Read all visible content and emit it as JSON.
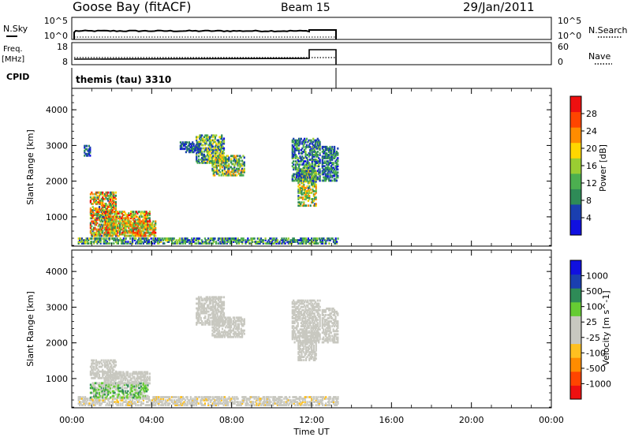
{
  "header": {
    "station": "Goose Bay (fitACF)",
    "beam": "Beam 15",
    "date": "29/Jan/2011"
  },
  "nsky_panel": {
    "left_label": "N.Sky",
    "left_ticks": [
      "10^5",
      "10^0"
    ],
    "right_ticks": [
      "10^5",
      "10^0"
    ],
    "right_label": "N.Search"
  },
  "freq_panel": {
    "left_label_line1": "Freq.",
    "left_label_line2": "[MHz]",
    "left_ticks": [
      "18",
      "8"
    ],
    "right_ticks": [
      "60",
      "0"
    ],
    "right_label": "Nave"
  },
  "cpid_panel": {
    "label": "CPID",
    "mode": "themis (tau) 3310"
  },
  "colors": {
    "power": [
      "#1010e0",
      "#1a3fb0",
      "#2e8b57",
      "#4caf50",
      "#9acd32",
      "#ffd700",
      "#ff8c00",
      "#ff4500",
      "#ee1010"
    ],
    "velocity": [
      "#ee1010",
      "#ff4500",
      "#ff8c00",
      "#ffc020",
      "#c8c8c0",
      "#c8c8c0",
      "#66cc33",
      "#2e8b57",
      "#1a3fb0",
      "#1010e0"
    ]
  },
  "chart_data": [
    {
      "type": "heatmap",
      "name": "power",
      "ylabel": "Slant Range [km]",
      "yticks": [
        "1000",
        "2000",
        "3000",
        "4000"
      ],
      "ylim": [
        180,
        4600
      ],
      "colorbar_label": "Power [dB]",
      "colorbar_ticks": [
        "4",
        "8",
        "12",
        "16",
        "20",
        "24",
        "28"
      ],
      "colorbar_range": [
        0,
        32
      ],
      "regions": [
        {
          "t": [
            0.3,
            1.4
          ],
          "r": [
            240,
            420
          ],
          "v": [
            3,
            20
          ]
        },
        {
          "t": [
            1.4,
            13.3
          ],
          "r": [
            240,
            380
          ],
          "v": [
            2,
            18
          ]
        },
        {
          "t": [
            0.9,
            2.2
          ],
          "r": [
            450,
            1700
          ],
          "v": [
            6,
            30
          ]
        },
        {
          "t": [
            1.6,
            3.9
          ],
          "r": [
            450,
            1150
          ],
          "v": [
            8,
            31
          ]
        },
        {
          "t": [
            2.5,
            4.2
          ],
          "r": [
            450,
            900
          ],
          "v": [
            10,
            30
          ]
        },
        {
          "t": [
            6.2,
            7.6
          ],
          "r": [
            2500,
            3300
          ],
          "v": [
            3,
            22
          ]
        },
        {
          "t": [
            7.0,
            8.6
          ],
          "r": [
            2150,
            2700
          ],
          "v": [
            5,
            24
          ]
        },
        {
          "t": [
            11.3,
            12.2
          ],
          "r": [
            1300,
            2300
          ],
          "v": [
            6,
            24
          ]
        },
        {
          "t": [
            11.0,
            12.4
          ],
          "r": [
            2000,
            3200
          ],
          "v": [
            2,
            16
          ]
        },
        {
          "t": [
            12.5,
            13.3
          ],
          "r": [
            2000,
            2950
          ],
          "v": [
            2,
            14
          ]
        },
        {
          "t": [
            5.4,
            6.4
          ],
          "r": [
            2800,
            3100
          ],
          "v": [
            2,
            10
          ]
        },
        {
          "t": [
            0.6,
            0.9
          ],
          "r": [
            2700,
            3000
          ],
          "v": [
            2,
            8
          ]
        }
      ]
    },
    {
      "type": "heatmap",
      "name": "velocity",
      "ylabel": "Slant Range [km]",
      "yticks": [
        "1000",
        "2000",
        "3000",
        "4000"
      ],
      "ylim": [
        180,
        4600
      ],
      "colorbar_label": "Velocity [m s^-1]",
      "colorbar_ticks": [
        "1000",
        "500",
        "100",
        "25",
        "-25",
        "-100",
        "-500",
        "-1000"
      ],
      "colorbar_range": [
        -1250,
        1250
      ],
      "regions": [
        {
          "t": [
            0.3,
            13.3
          ],
          "r": [
            240,
            500
          ],
          "v": [
            -300,
            100
          ]
        },
        {
          "t": [
            0.9,
            3.8
          ],
          "r": [
            450,
            900
          ],
          "v": [
            50,
            600
          ]
        },
        {
          "t": [
            0.9,
            2.2
          ],
          "r": [
            1000,
            1500
          ],
          "v": [
            -20,
            20
          ]
        },
        {
          "t": [
            1.6,
            3.9
          ],
          "r": [
            850,
            1200
          ],
          "v": [
            -20,
            20
          ]
        },
        {
          "t": [
            6.2,
            7.6
          ],
          "r": [
            2500,
            3300
          ],
          "v": [
            -20,
            20
          ]
        },
        {
          "t": [
            7.0,
            8.6
          ],
          "r": [
            2150,
            2700
          ],
          "v": [
            -20,
            20
          ]
        },
        {
          "t": [
            11.3,
            12.2
          ],
          "r": [
            1500,
            2300
          ],
          "v": [
            -20,
            20
          ]
        },
        {
          "t": [
            11.0,
            12.4
          ],
          "r": [
            2000,
            3200
          ],
          "v": [
            -20,
            20
          ]
        },
        {
          "t": [
            12.5,
            13.3
          ],
          "r": [
            2000,
            2950
          ],
          "v": [
            -20,
            20
          ]
        }
      ]
    }
  ],
  "time_axis": {
    "label": "Time UT",
    "ticks": [
      "00:00",
      "04:00",
      "08:00",
      "12:00",
      "16:00",
      "20:00",
      "00:00"
    ],
    "range_hours": [
      0,
      24
    ]
  }
}
